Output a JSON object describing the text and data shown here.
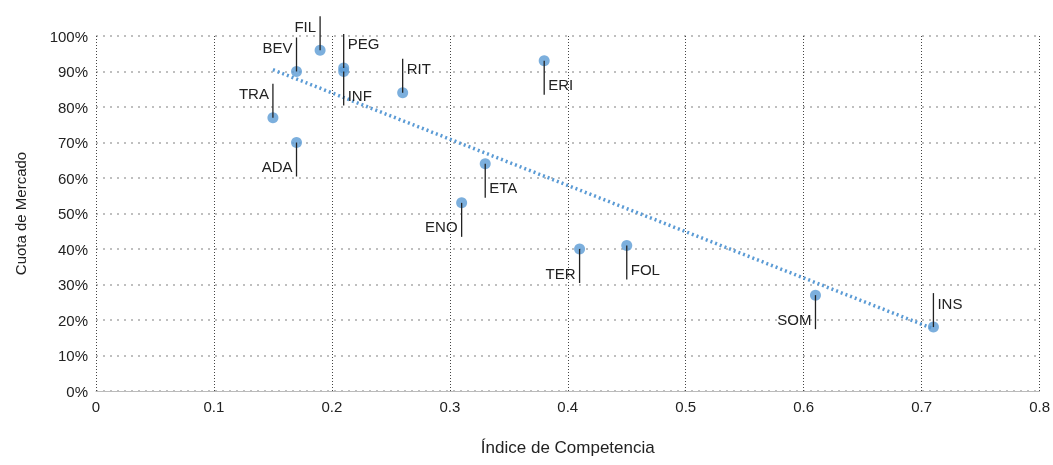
{
  "chart_data": {
    "type": "scatter",
    "xlabel": "Índice de Competencia",
    "ylabel": "Cuota de Mercado",
    "series": [
      {
        "type": "scatter",
        "color": "#5b9bd5",
        "x": [
          0.19,
          0.21,
          0.17,
          0.21,
          0.26,
          0.38,
          0.15,
          0.17,
          0.33,
          0.31,
          0.41,
          0.45,
          0.61,
          0.71
        ],
        "values": [
          96,
          91,
          90,
          90,
          84,
          93,
          77,
          70,
          64,
          53,
          40,
          41,
          27,
          18
        ]
      },
      {
        "type": "line",
        "color": "#5b9bd5",
        "line_style": "dotted",
        "marker": "none",
        "x": [
          0.15,
          0.71
        ],
        "values": [
          90.5,
          17.5
        ]
      }
    ],
    "annotations": [
      {
        "text": "FIL",
        "x": 0.19,
        "y": 96
      },
      {
        "text": "PEG",
        "x": 0.21,
        "y": 91
      },
      {
        "text": "BEV",
        "x": 0.17,
        "y": 90
      },
      {
        "text": "INF",
        "x": 0.21,
        "y": 90
      },
      {
        "text": "RIT",
        "x": 0.26,
        "y": 84
      },
      {
        "text": "ERI",
        "x": 0.38,
        "y": 93
      },
      {
        "text": "TRA",
        "x": 0.15,
        "y": 77
      },
      {
        "text": "ADA",
        "x": 0.17,
        "y": 70
      },
      {
        "text": "ETA",
        "x": 0.33,
        "y": 64
      },
      {
        "text": "ENO",
        "x": 0.31,
        "y": 53
      },
      {
        "text": "TER",
        "x": 0.41,
        "y": 40
      },
      {
        "text": "FOL",
        "x": 0.45,
        "y": 41
      },
      {
        "text": "SOM",
        "x": 0.61,
        "y": 27
      },
      {
        "text": "INS",
        "x": 0.71,
        "y": 18
      }
    ],
    "xlim": [
      0,
      0.8
    ],
    "xticks": [
      0,
      0.1,
      0.2,
      0.3,
      0.4,
      0.5,
      0.6,
      0.7,
      0.8
    ],
    "ylim": [
      0,
      100
    ],
    "yticks": [
      {
        "value": 0,
        "label": "0%"
      },
      {
        "value": 10,
        "label": "10%"
      },
      {
        "value": 20,
        "label": "20%"
      },
      {
        "value": 30,
        "label": "30%"
      },
      {
        "value": 40,
        "label": "40%"
      },
      {
        "value": 50,
        "label": "50%"
      },
      {
        "value": 60,
        "label": "60%"
      },
      {
        "value": 70,
        "label": "70%"
      },
      {
        "value": 80,
        "label": "80%"
      },
      {
        "value": 90,
        "label": "90%"
      },
      {
        "value": 100,
        "label": "100%"
      }
    ],
    "grid": true,
    "marker": "circle"
  }
}
